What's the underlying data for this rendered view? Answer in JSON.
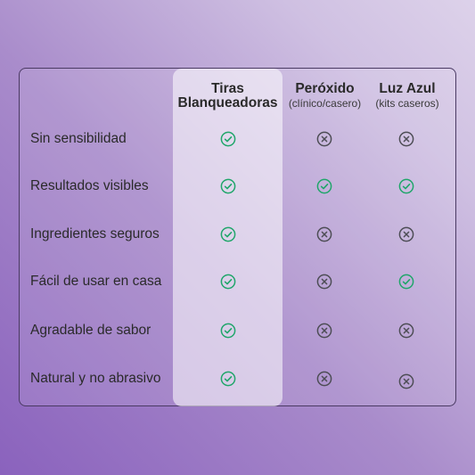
{
  "columns": [
    {
      "title_line1": "Tiras",
      "title_line2": "Blanqueadoras",
      "subtitle": ""
    },
    {
      "title_line1": "Peróxido",
      "title_line2": "",
      "subtitle": "(clínico/casero)"
    },
    {
      "title_line1": "Luz Azul",
      "title_line2": "",
      "subtitle": "(kits caseros)"
    }
  ],
  "rows": [
    {
      "label": "Sin sensibilidad",
      "values": [
        "check",
        "cross",
        "cross"
      ]
    },
    {
      "label": "Resultados visibles",
      "values": [
        "check",
        "check",
        "check"
      ]
    },
    {
      "label": "Ingredientes seguros",
      "values": [
        "check",
        "cross",
        "cross"
      ]
    },
    {
      "label": "Fácil de usar en casa",
      "values": [
        "check",
        "cross",
        "check"
      ]
    },
    {
      "label": "Agradable de sabor",
      "values": [
        "check",
        "cross",
        "cross"
      ]
    },
    {
      "label": "Natural y no abrasivo",
      "values": [
        "check",
        "cross",
        "cross"
      ]
    }
  ],
  "colors": {
    "check": "#1fa66a",
    "cross": "#4d4d55",
    "border": "#4a3a63"
  }
}
